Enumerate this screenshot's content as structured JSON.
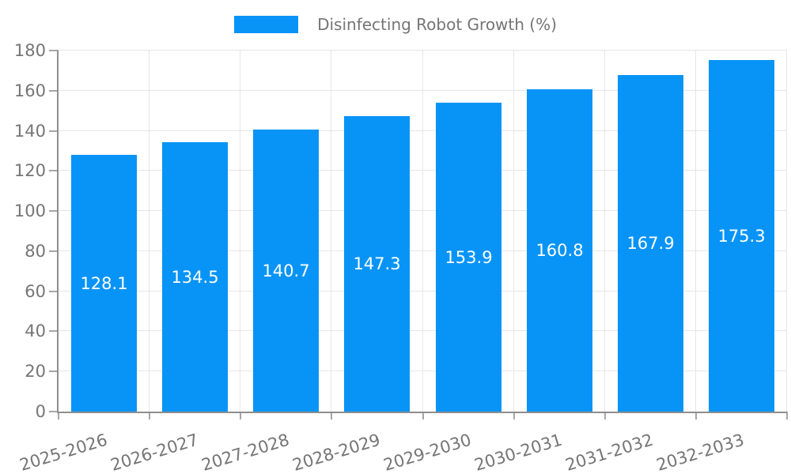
{
  "chart_data": {
    "type": "bar",
    "title": "Disinfecting Robot Growth (%)",
    "categories": [
      "2025-2026",
      "2026-2027",
      "2027-2028",
      "2028-2029",
      "2029-2030",
      "2030-2031",
      "2031-2032",
      "2032-2033"
    ],
    "values": [
      128.1,
      134.5,
      140.7,
      147.3,
      153.9,
      160.8,
      167.9,
      175.3
    ],
    "xlabel": "",
    "ylabel": "",
    "ylim": [
      0,
      180
    ],
    "ytick_step": 20,
    "ytick_labels": [
      "0",
      "20",
      "40",
      "60",
      "80",
      "100",
      "120",
      "140",
      "160",
      "180"
    ],
    "grid": true,
    "legend_position": "top-center",
    "value_label_position": "inside-middle",
    "colors": {
      "bar": "#0894f6",
      "value_label": "#ffffff",
      "axis_text": "#757575",
      "grid_line": "#e6e6e6",
      "tick_mark": "#a6a6a6",
      "axis_line": "#8e8e8e",
      "background": "#ffffff"
    }
  }
}
